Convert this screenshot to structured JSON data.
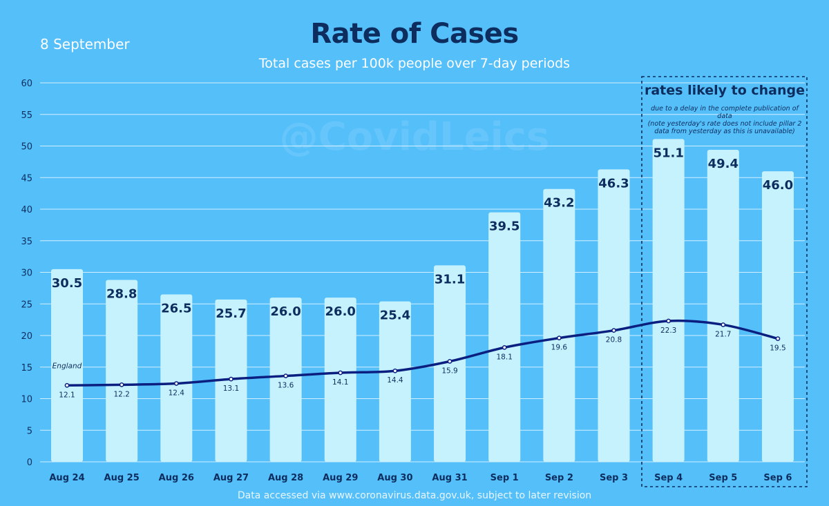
{
  "date": "8 September",
  "watermark": "@CovidLeics",
  "footer": "Data accessed via www.coronavirus.data.gov.uk, subject to later revision",
  "annotation": {
    "title": "rates likely to change",
    "note_lines": [
      "due to a delay in the complete publication of data",
      "(note yesterday's rate does not include pillar 2",
      "data from yesterday as this is unavailable)"
    ]
  },
  "colors": {
    "background": "#55bffa",
    "bar": "#c6f2fd",
    "line": "#0a1f80",
    "title": "#0d2d5e",
    "grid": "#ffffff"
  },
  "chart_data": {
    "type": "bar",
    "title": "Rate of Cases",
    "subtitle": "Total cases per 100k people over 7-day periods",
    "xlabel": "",
    "ylabel": "",
    "ylim": [
      0,
      60
    ],
    "yticks": [
      0,
      5,
      10,
      15,
      20,
      25,
      30,
      35,
      40,
      45,
      50,
      55,
      60
    ],
    "grid": true,
    "categories": [
      "Aug 24",
      "Aug 25",
      "Aug 26",
      "Aug 27",
      "Aug 28",
      "Aug 29",
      "Aug 30",
      "Aug 31",
      "Sep 1",
      "Sep 2",
      "Sep 3",
      "Sep 4",
      "Sep 5",
      "Sep 6"
    ],
    "series": [
      {
        "type": "bar",
        "values": [
          30.5,
          28.8,
          26.5,
          25.7,
          26.0,
          26.0,
          25.4,
          31.1,
          39.5,
          43.2,
          46.3,
          51.1,
          49.4,
          46.0
        ],
        "labels": [
          "30.5",
          "28.8",
          "26.5",
          "25.7",
          "26.0",
          "26.0",
          "25.4",
          "31.1",
          "39.5",
          "43.2",
          "46.3",
          "51.1",
          "49.4",
          "46.0"
        ]
      },
      {
        "name": "England",
        "type": "line",
        "values": [
          12.1,
          12.2,
          12.4,
          13.1,
          13.6,
          14.1,
          14.4,
          15.9,
          18.1,
          19.6,
          20.8,
          22.3,
          21.7,
          19.5
        ],
        "labels": [
          "12.1",
          "12.2",
          "12.4",
          "13.1",
          "13.6",
          "14.1",
          "14.4",
          "15.9",
          "18.1",
          "19.6",
          "20.8",
          "22.3",
          "21.7",
          "19.5"
        ]
      }
    ],
    "highlight_range": [
      "Sep 4",
      "Sep 6"
    ]
  }
}
